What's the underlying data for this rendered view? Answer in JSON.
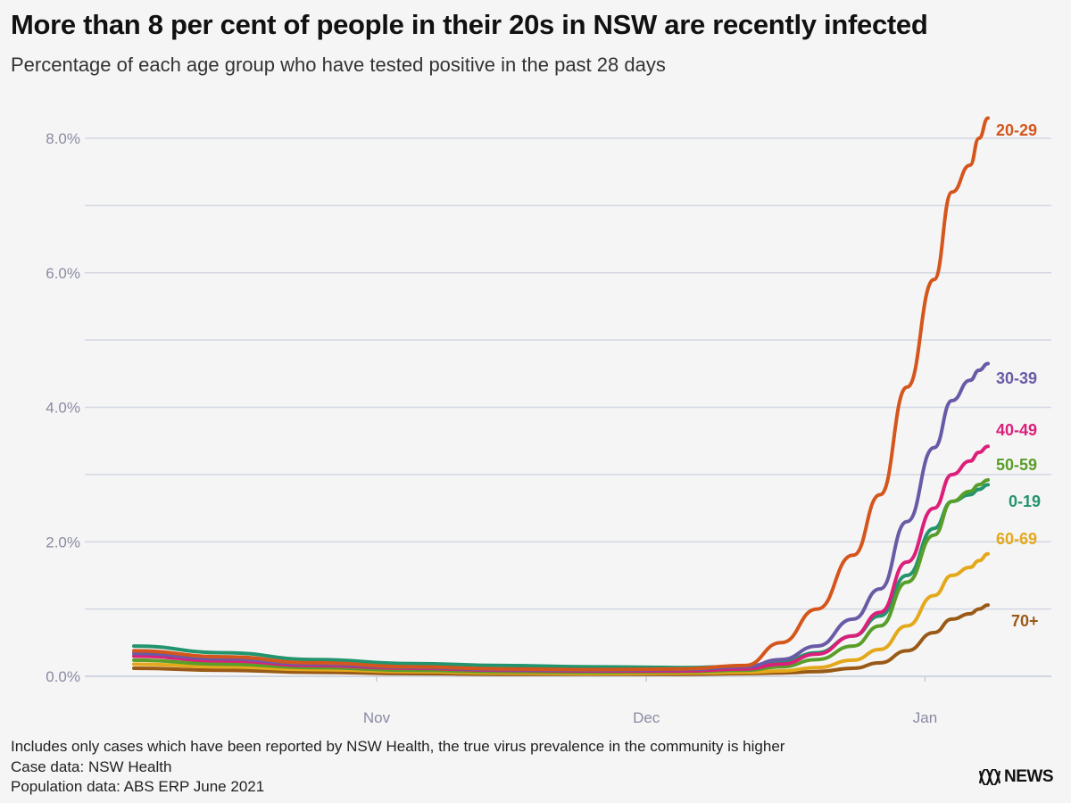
{
  "title": "More than 8 per cent of people in their 20s in NSW are recently infected",
  "subtitle": "Percentage of each age group who have tested positive in the past 28 days",
  "footer": {
    "note": "Includes only cases which have been reported by NSW Health, the true virus prevalence in the community is higher",
    "case_source": "Case data: NSW Health",
    "population_source": "Population data: ABS ERP June 2021"
  },
  "logo": {
    "text": "NEWS",
    "icon": "abc-lissajous-icon"
  },
  "chart_data": {
    "type": "line",
    "xlabel": "",
    "ylabel": "",
    "x_ticks": [
      "Nov",
      "Dec",
      "Jan"
    ],
    "y_ticks": [
      "0.0%",
      "2.0%",
      "4.0%",
      "6.0%",
      "8.0%"
    ],
    "ylim": [
      0,
      8.6
    ],
    "grid": true,
    "x": [
      "2021-10-05",
      "2021-10-15",
      "2021-10-25",
      "2021-11-05",
      "2021-11-15",
      "2021-11-25",
      "2021-12-05",
      "2021-12-12",
      "2021-12-16",
      "2021-12-20",
      "2021-12-24",
      "2021-12-27",
      "2021-12-30",
      "2022-01-02",
      "2022-01-04",
      "2022-01-06",
      "2022-01-07",
      "2022-01-08"
    ],
    "series": [
      {
        "name": "20-29",
        "color": "#d5561c",
        "values": [
          0.38,
          0.29,
          0.2,
          0.14,
          0.11,
          0.1,
          0.11,
          0.16,
          0.5,
          1.0,
          1.8,
          2.7,
          4.3,
          5.9,
          7.2,
          7.6,
          8.0,
          8.3
        ]
      },
      {
        "name": "30-39",
        "color": "#6a5aa6",
        "values": [
          0.34,
          0.26,
          0.18,
          0.13,
          0.1,
          0.09,
          0.1,
          0.14,
          0.25,
          0.45,
          0.85,
          1.3,
          2.3,
          3.4,
          4.1,
          4.4,
          4.55,
          4.65
        ]
      },
      {
        "name": "40-49",
        "color": "#dc1f7a",
        "values": [
          0.3,
          0.23,
          0.16,
          0.12,
          0.09,
          0.08,
          0.08,
          0.11,
          0.18,
          0.33,
          0.6,
          0.95,
          1.7,
          2.5,
          3.0,
          3.2,
          3.33,
          3.42
        ]
      },
      {
        "name": "50-59",
        "color": "#5a9e2a",
        "values": [
          0.24,
          0.18,
          0.13,
          0.09,
          0.07,
          0.06,
          0.07,
          0.09,
          0.14,
          0.25,
          0.45,
          0.75,
          1.4,
          2.1,
          2.6,
          2.75,
          2.85,
          2.92
        ]
      },
      {
        "name": "0-19",
        "color": "#22946e",
        "values": [
          0.45,
          0.35,
          0.25,
          0.19,
          0.16,
          0.14,
          0.13,
          0.15,
          0.22,
          0.35,
          0.6,
          0.9,
          1.5,
          2.2,
          2.6,
          2.7,
          2.78,
          2.85
        ]
      },
      {
        "name": "60-69",
        "color": "#e4a81b",
        "values": [
          0.18,
          0.14,
          0.1,
          0.07,
          0.05,
          0.04,
          0.05,
          0.06,
          0.08,
          0.13,
          0.24,
          0.4,
          0.75,
          1.2,
          1.5,
          1.62,
          1.72,
          1.82
        ]
      },
      {
        "name": "70+",
        "color": "#9a5a17",
        "values": [
          0.12,
          0.09,
          0.06,
          0.04,
          0.03,
          0.03,
          0.03,
          0.04,
          0.05,
          0.07,
          0.12,
          0.2,
          0.38,
          0.65,
          0.85,
          0.93,
          1.0,
          1.06
        ]
      }
    ]
  }
}
